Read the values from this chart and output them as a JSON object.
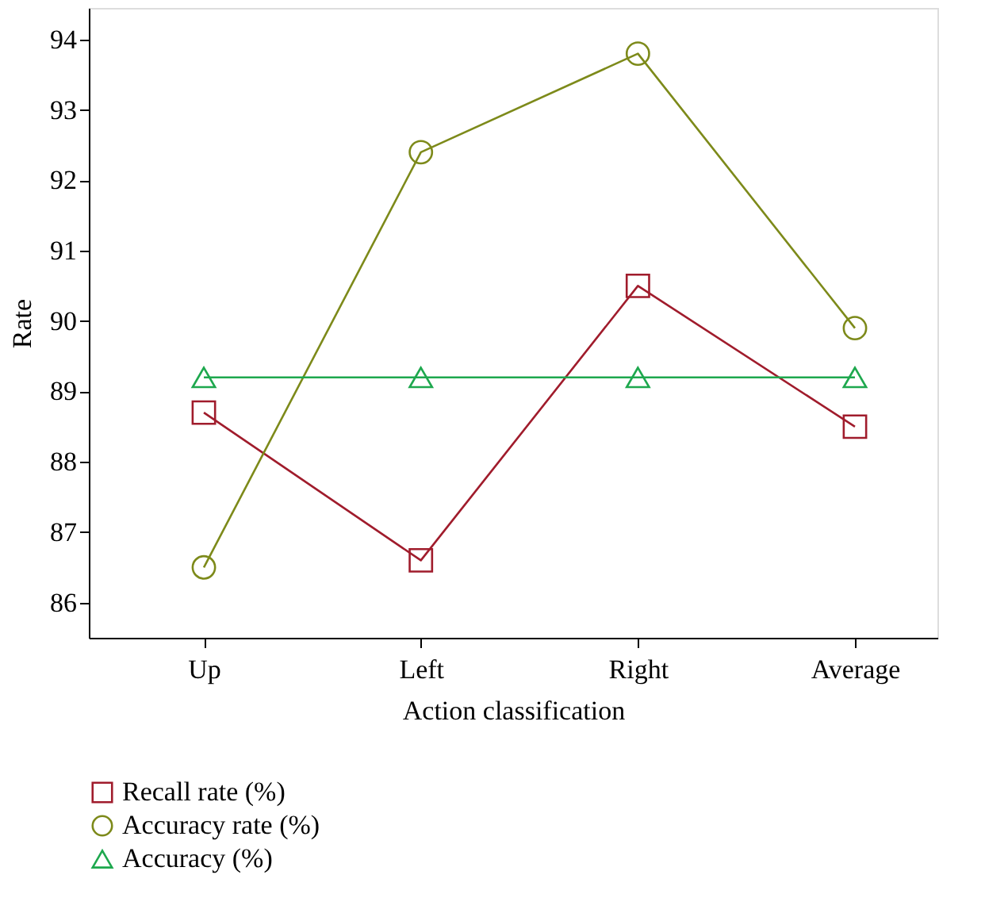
{
  "chart_data": {
    "type": "line",
    "xlabel": "Action classification",
    "ylabel": "Rate",
    "categories": [
      "Up",
      "Left",
      "Right",
      "Average"
    ],
    "series": [
      {
        "name": "Recall rate (%)",
        "color": "#a01c2c",
        "marker": "square",
        "values": [
          88.7,
          86.6,
          90.5,
          88.5
        ]
      },
      {
        "name": "Accuracy rate (%)",
        "color": "#7d8a1a",
        "marker": "circle",
        "values": [
          86.5,
          92.4,
          93.8,
          89.9
        ]
      },
      {
        "name": "Accuracy (%)",
        "color": "#1ea84e",
        "marker": "triangle",
        "values": [
          89.2,
          89.2,
          89.2,
          89.2
        ]
      }
    ],
    "ylim": [
      85.5,
      94.45
    ],
    "yticks": [
      86,
      87,
      88,
      89,
      90,
      91,
      92,
      93,
      94
    ],
    "grid": false,
    "legend": "bottom left",
    "line_style": "solid"
  }
}
